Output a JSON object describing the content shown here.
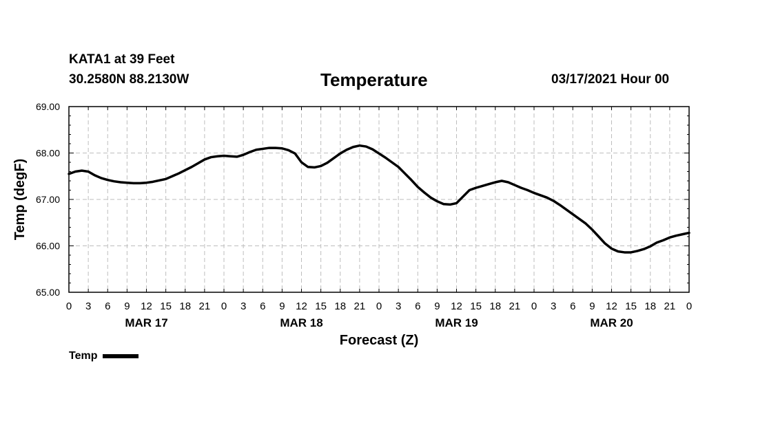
{
  "header": {
    "station": "KATA1 at 39 Feet",
    "coords": "30.2580N 88.2130W",
    "title": "Temperature",
    "datetime": "03/17/2021 Hour 00"
  },
  "legend": {
    "label": "Temp"
  },
  "chart_data": {
    "type": "line",
    "title": "Temperature",
    "xlabel": "Forecast (Z)",
    "ylabel": "Temp (degF)",
    "xlim": [
      0,
      96
    ],
    "ylim": [
      65,
      69
    ],
    "y_ticks": [
      "65.00",
      "66.00",
      "67.00",
      "68.00",
      "69.00"
    ],
    "x_ticks": [
      "0",
      "3",
      "6",
      "9",
      "12",
      "15",
      "18",
      "21",
      "0",
      "3",
      "6",
      "9",
      "12",
      "15",
      "18",
      "21",
      "0",
      "3",
      "6",
      "9",
      "12",
      "15",
      "18",
      "21",
      "0",
      "3",
      "6",
      "9",
      "12",
      "15",
      "18",
      "21",
      "0"
    ],
    "date_labels": [
      {
        "label": "MAR 17",
        "hour": 12
      },
      {
        "label": "MAR 18",
        "hour": 36
      },
      {
        "label": "MAR 19",
        "hour": 60
      },
      {
        "label": "MAR 20",
        "hour": 84
      }
    ],
    "grid": true,
    "legend_position": "bottom-left",
    "series": [
      {
        "name": "Temp",
        "color": "#000000",
        "x": [
          0,
          1,
          2,
          3,
          4,
          5,
          6,
          7,
          8,
          9,
          10,
          11,
          12,
          13,
          14,
          15,
          16,
          17,
          18,
          19,
          20,
          21,
          22,
          23,
          24,
          25,
          26,
          27,
          28,
          29,
          30,
          31,
          32,
          33,
          34,
          35,
          36,
          37,
          38,
          39,
          40,
          41,
          42,
          43,
          44,
          45,
          46,
          47,
          48,
          49,
          50,
          51,
          52,
          53,
          54,
          55,
          56,
          57,
          58,
          59,
          60,
          61,
          62,
          63,
          64,
          65,
          66,
          67,
          68,
          69,
          70,
          71,
          72,
          73,
          74,
          75,
          76,
          77,
          78,
          79,
          80,
          81,
          82,
          83,
          84,
          85,
          86,
          87,
          88,
          89,
          90,
          91,
          92,
          93,
          94,
          95,
          96
        ],
        "values": [
          67.55,
          67.6,
          67.62,
          67.6,
          67.52,
          67.46,
          67.42,
          67.39,
          67.37,
          67.36,
          67.35,
          67.35,
          67.36,
          67.38,
          67.41,
          67.44,
          67.5,
          67.56,
          67.63,
          67.7,
          67.78,
          67.86,
          67.91,
          67.93,
          67.94,
          67.93,
          67.92,
          67.96,
          68.02,
          68.07,
          68.09,
          68.11,
          68.11,
          68.1,
          68.06,
          67.99,
          67.8,
          67.7,
          67.69,
          67.72,
          67.79,
          67.89,
          67.99,
          68.07,
          68.13,
          68.16,
          68.14,
          68.08,
          67.99,
          67.9,
          67.8,
          67.7,
          67.56,
          67.42,
          67.27,
          67.15,
          67.04,
          66.96,
          66.9,
          66.89,
          66.92,
          67.06,
          67.2,
          67.25,
          67.29,
          67.33,
          67.37,
          67.4,
          67.37,
          67.31,
          67.25,
          67.2,
          67.14,
          67.09,
          67.04,
          66.97,
          66.88,
          66.78,
          66.68,
          66.58,
          66.48,
          66.35,
          66.2,
          66.05,
          65.94,
          65.88,
          65.86,
          65.86,
          65.89,
          65.93,
          65.99,
          66.07,
          66.12,
          66.18,
          66.22,
          66.25,
          66.28
        ]
      }
    ]
  }
}
